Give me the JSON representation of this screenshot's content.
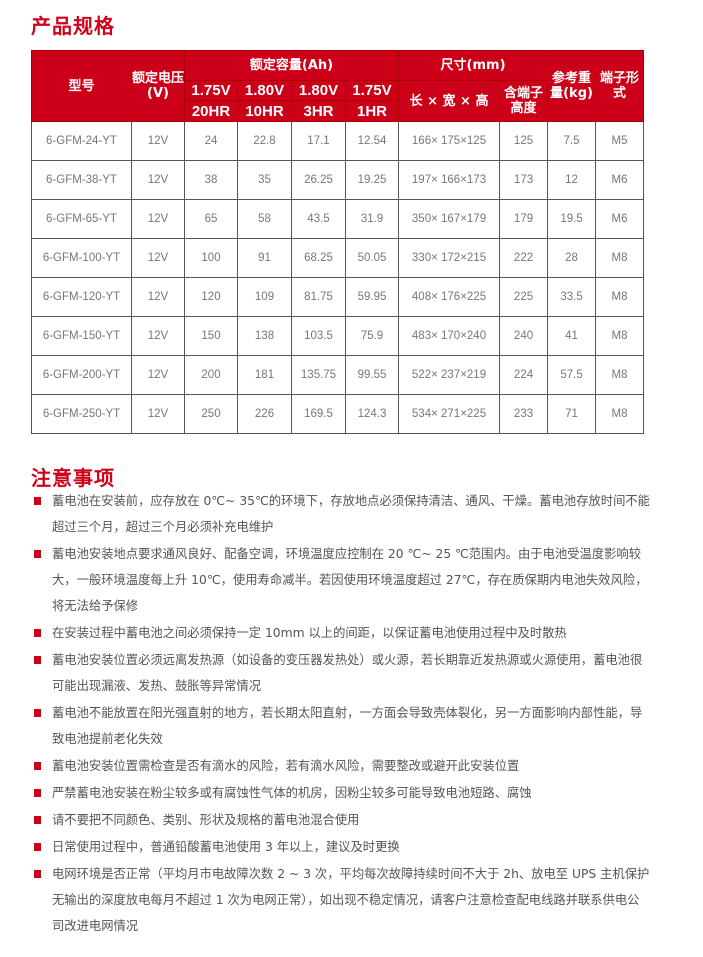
{
  "spec_title": "产品规格",
  "header": {
    "model": "型号",
    "voltage": "额定电压(V)",
    "capacity": "额定容量(Ah)",
    "cap_cols": [
      {
        "v": "1.75V",
        "hr": "20HR"
      },
      {
        "v": "1.80V",
        "hr": "10HR"
      },
      {
        "v": "1.80V",
        "hr": "3HR"
      },
      {
        "v": "1.75V",
        "hr": "1HR"
      }
    ],
    "size": "尺寸(mm)",
    "lwh": "长 × 宽 × 高",
    "term_height": "含端子高度",
    "weight": "参考重量(kg)",
    "terminal": "端子形式"
  },
  "rows": [
    [
      "6-GFM-24-YT",
      "12V",
      "24",
      "22.8",
      "17.1",
      "12.54",
      "166× 175×125",
      "125",
      "7.5",
      "M5"
    ],
    [
      "6-GFM-38-YT",
      "12V",
      "38",
      "35",
      "26.25",
      "19.25",
      "197× 166×173",
      "173",
      "12",
      "M6"
    ],
    [
      "6-GFM-65-YT",
      "12V",
      "65",
      "58",
      "43.5",
      "31.9",
      "350× 167×179",
      "179",
      "19.5",
      "M6"
    ],
    [
      "6-GFM-100-YT",
      "12V",
      "100",
      "91",
      "68.25",
      "50.05",
      "330× 172×215",
      "222",
      "28",
      "M8"
    ],
    [
      "6-GFM-120-YT",
      "12V",
      "120",
      "109",
      "81.75",
      "59.95",
      "408× 176×225",
      "225",
      "33.5",
      "M8"
    ],
    [
      "6-GFM-150-YT",
      "12V",
      "150",
      "138",
      "103.5",
      "75.9",
      "483× 170×240",
      "240",
      "41",
      "M8"
    ],
    [
      "6-GFM-200-YT",
      "12V",
      "200",
      "181",
      "135.75",
      "99.55",
      "522× 237×219",
      "224",
      "57.5",
      "M8"
    ],
    [
      "6-GFM-250-YT",
      "12V",
      "250",
      "226",
      "169.5",
      "124.3",
      "534× 271×225",
      "233",
      "71",
      "M8"
    ]
  ],
  "notes_title": "注意事项",
  "notes": [
    "蓄电池在安装前，应存放在 0℃~ 35℃的环境下，存放地点必须保持清洁、通风、干燥。蓄电池存放时间不能超过三个月，超过三个月必须补充电维护",
    "蓄电池安装地点要求通风良好、配备空调，环境温度应控制在 20 ℃~ 25 ℃范围内。由于电池受温度影响较大，一般环境温度每上升 10℃，使用寿命减半。若因使用环境温度超过 27℃，存在质保期内电池失效风险，将无法给予保修",
    "在安装过程中蓄电池之间必须保持一定 10mm 以上的间距，以保证蓄电池使用过程中及时散热",
    "蓄电池安装位置必须远离发热源（如设备的变压器发热处）或火源，若长期靠近发热源或火源使用，蓄电池很可能出现漏液、发热、鼓胀等异常情况",
    "蓄电池不能放置在阳光强直射的地方，若长期太阳直射，一方面会导致壳体裂化，另一方面影响内部性能，导致电池提前老化失效",
    "蓄电池安装位置需检查是否有滴水的风险，若有滴水风险，需要整改或避开此安装位置",
    "严禁蓄电池安装在粉尘较多或有腐蚀性气体的机房，因粉尘较多可能导致电池短路、腐蚀",
    "请不要把不同颜色、类别、形状及规格的蓄电池混合使用",
    "日常使用过程中，普通铅酸蓄电池使用 3 年以上，建议及时更换",
    "电网环境是否正常（平均月市电故障次数 2 ~ 3 次，平均每次故障持续时间不大于 2h、放电至 UPS 主机保护无输出的深度放电每月不超过 1 次为电网正常），如出现不稳定情况，请客户注意检查配电线路并联系供电公司改进电网情况"
  ],
  "colors": {
    "accent": "#cc0018"
  }
}
